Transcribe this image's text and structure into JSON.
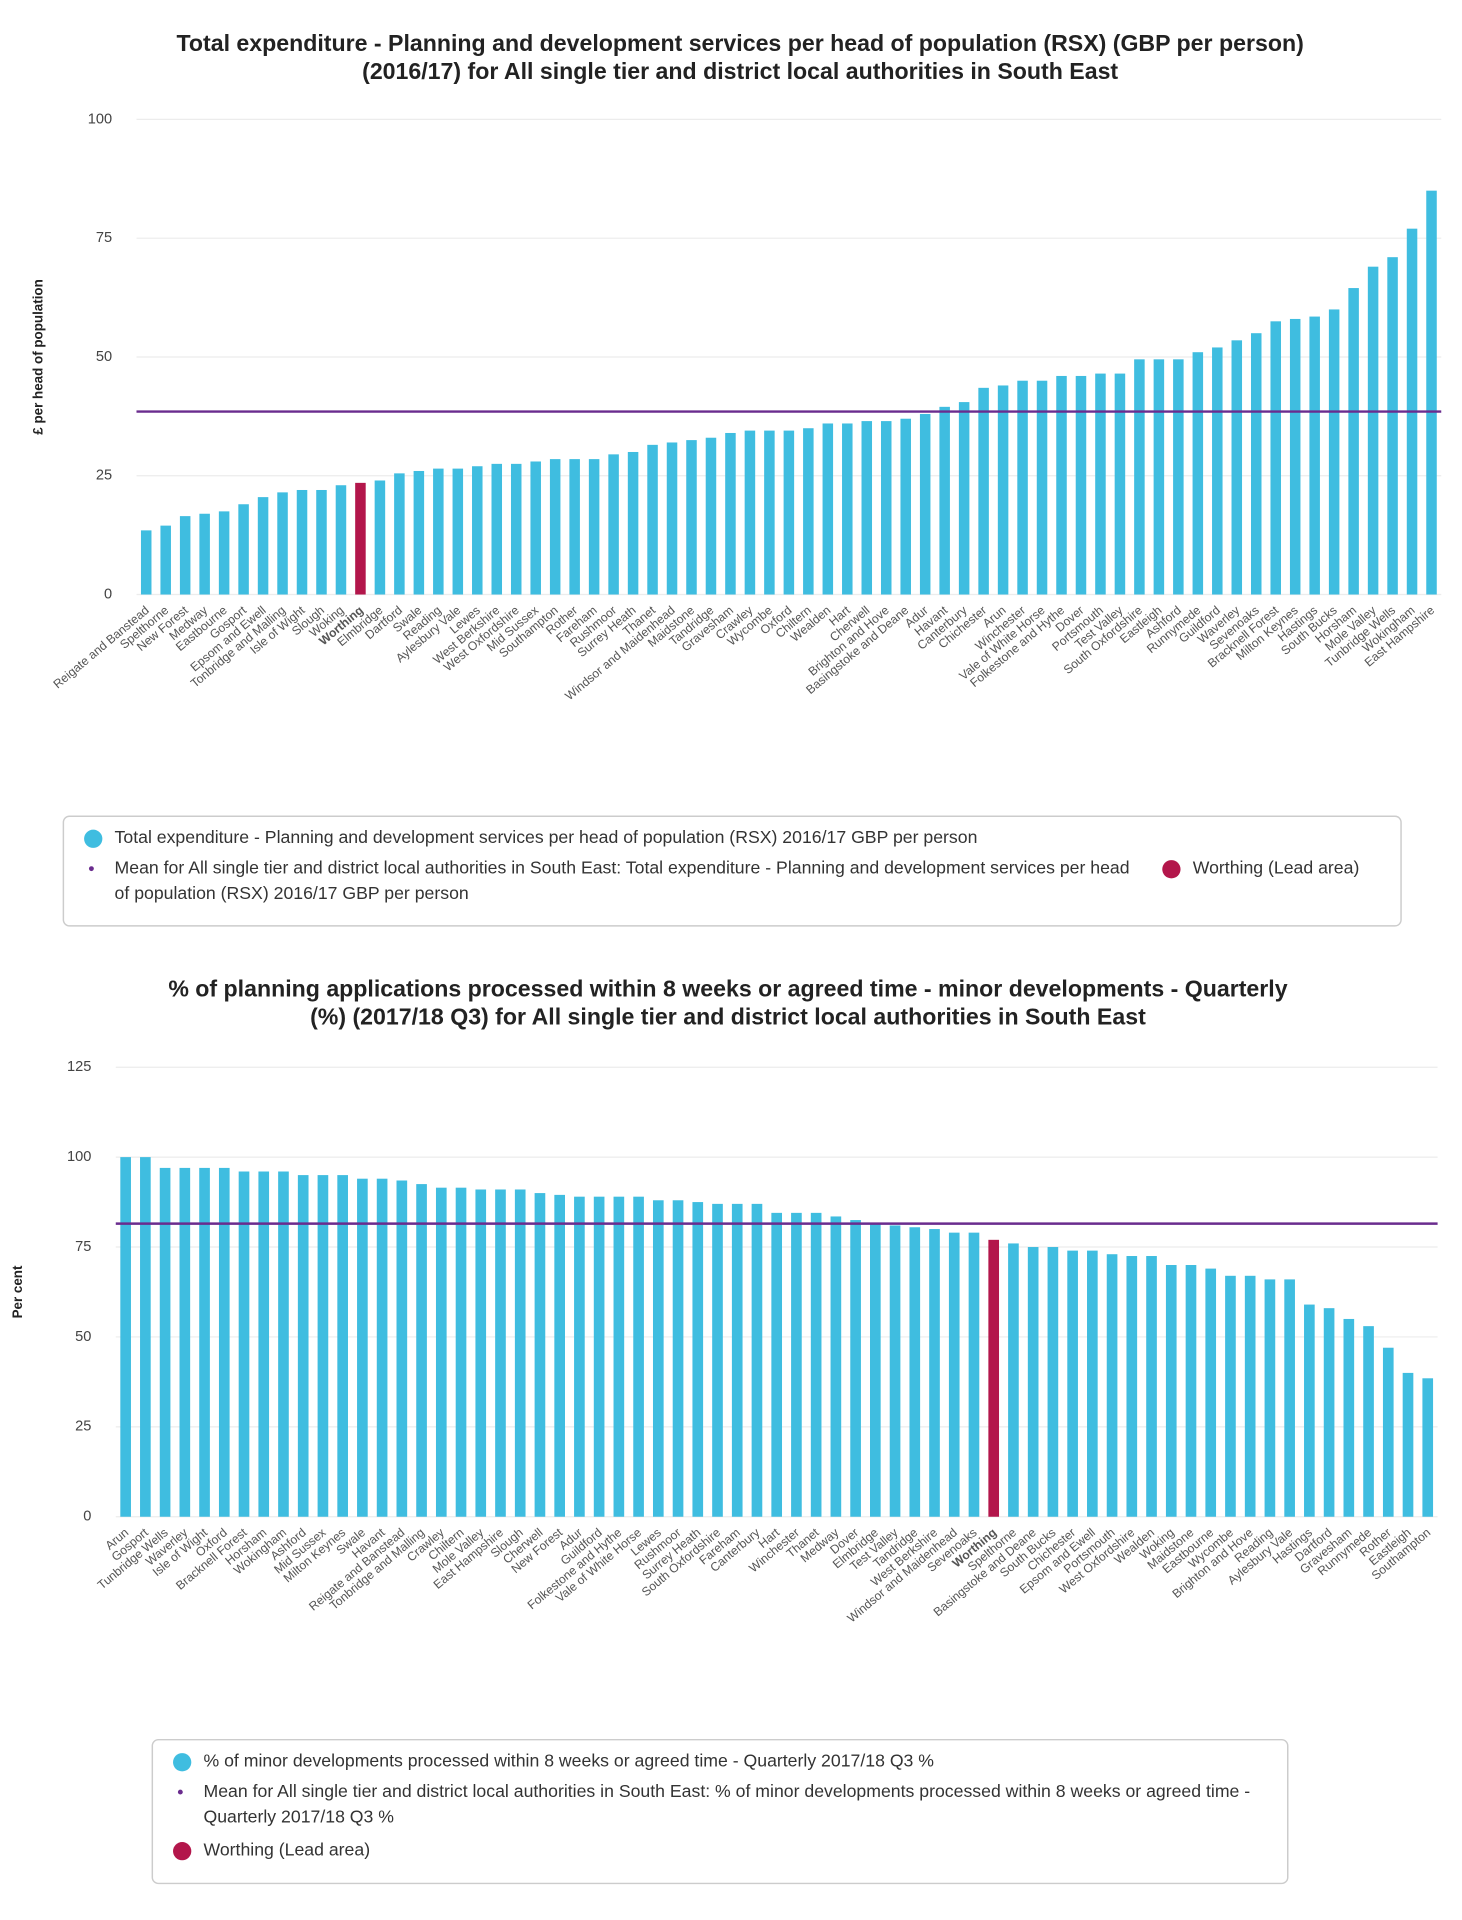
{
  "chart_data": [
    {
      "type": "bar",
      "title": [
        "Total expenditure - Planning and development services per head of population (RSX) (GBP per person)",
        "(2016/17) for All single tier and district local authorities in South East"
      ],
      "y_label": "£ per head of population",
      "ylim": [
        0,
        100
      ],
      "yticks": [
        0,
        25,
        50,
        75,
        100
      ],
      "grid": true,
      "categories": [
        "Reigate and Banstead",
        "Spelthorne",
        "New Forest",
        "Medway",
        "Eastbourne",
        "Gosport",
        "Epsom and Ewell",
        "Tonbridge and Malling",
        "Isle of Wight",
        "Slough",
        "Woking",
        "Worthing",
        "Elmbridge",
        "Dartford",
        "Swale",
        "Reading",
        "Aylesbury Vale",
        "Lewes",
        "West Berkshire",
        "West Oxfordshire",
        "Mid Sussex",
        "Southampton",
        "Rother",
        "Fareham",
        "Rushmoor",
        "Surrey Heath",
        "Thanet",
        "Windsor and Maidenhead",
        "Maidstone",
        "Tandridge",
        "Gravesham",
        "Crawley",
        "Wycombe",
        "Oxford",
        "Chiltern",
        "Wealden",
        "Hart",
        "Cherwell",
        "Brighton and Hove",
        "Basingstoke and Deane",
        "Adur",
        "Havant",
        "Canterbury",
        "Chichester",
        "Arun",
        "Winchester",
        "Vale of White Horse",
        "Folkestone and Hythe",
        "Dover",
        "Portsmouth",
        "Test Valley",
        "South Oxfordshire",
        "Eastleigh",
        "Ashford",
        "Runnymede",
        "Guildford",
        "Waverley",
        "Sevenoaks",
        "Bracknell Forest",
        "Milton Keynes",
        "Hastings",
        "South Bucks",
        "Horsham",
        "Mole Valley",
        "Tunbridge Wells",
        "Wokingham",
        "East Hampshire"
      ],
      "series": [
        {
          "name": "Total expenditure - Planning and development services per head of population (RSX) 2016/17 GBP per person",
          "color": "#3fbde0",
          "values": [
            13.5,
            14.5,
            16.5,
            17,
            17.5,
            19,
            20.5,
            21.5,
            22,
            22,
            23,
            23.5,
            24,
            25.5,
            26,
            26.5,
            26.5,
            27,
            27.5,
            27.5,
            28,
            28.5,
            28.5,
            28.5,
            29.5,
            30,
            31.5,
            32,
            32.5,
            33,
            34,
            34.5,
            34.5,
            34.5,
            35,
            36,
            36,
            36.5,
            36.5,
            37,
            38,
            39.5,
            40.5,
            43.5,
            44,
            45,
            45,
            46,
            46,
            46.5,
            46.5,
            49.5,
            49.5,
            49.5,
            51,
            52,
            53.5,
            55,
            57.5,
            58,
            58.5,
            60,
            64.5,
            69,
            71,
            77,
            85
          ]
        }
      ],
      "mean": {
        "name": "Mean for All single tier and district local authorities in South East: Total expenditure - Planning and development services per head of population (RSX) 2016/17 GBP per person",
        "value": 38.5,
        "color": "#6a2c8e"
      },
      "highlight": {
        "name": "Worthing (Lead area)",
        "category": "Worthing",
        "color": "#b3164b"
      }
    },
    {
      "type": "bar",
      "title": [
        "% of planning applications processed within 8 weeks or agreed time - minor developments - Quarterly",
        "(%) (2017/18 Q3) for All single tier and district local authorities in South East"
      ],
      "y_label": "Per cent",
      "ylim": [
        0,
        125
      ],
      "yticks": [
        0,
        25,
        50,
        75,
        100,
        125
      ],
      "grid": true,
      "categories": [
        "Arun",
        "Gosport",
        "Tunbridge Wells",
        "Waverley",
        "Isle of Wight",
        "Oxford",
        "Bracknell Forest",
        "Horsham",
        "Wokingham",
        "Ashford",
        "Mid Sussex",
        "Milton Keynes",
        "Swale",
        "Havant",
        "Reigate and Banstead",
        "Tonbridge and Malling",
        "Crawley",
        "Chiltern",
        "Mole Valley",
        "East Hampshire",
        "Slough",
        "Cherwell",
        "New Forest",
        "Adur",
        "Guildford",
        "Folkestone and Hythe",
        "Vale of White Horse",
        "Lewes",
        "Rushmoor",
        "Surrey Heath",
        "South Oxfordshire",
        "Fareham",
        "Canterbury",
        "Hart",
        "Winchester",
        "Thanet",
        "Medway",
        "Dover",
        "Elmbridge",
        "Test Valley",
        "Tandridge",
        "West Berkshire",
        "Windsor and Maidenhead",
        "Sevenoaks",
        "Worthing",
        "Spelthorne",
        "Basingstoke and Deane",
        "South Bucks",
        "Chichester",
        "Epsom and Ewell",
        "Portsmouth",
        "West Oxfordshire",
        "Wealden",
        "Woking",
        "Maidstone",
        "Eastbourne",
        "Wycombe",
        "Brighton and Hove",
        "Reading",
        "Aylesbury Vale",
        "Hastings",
        "Dartford",
        "Gravesham",
        "Runnymede",
        "Rother",
        "Eastleigh",
        "Southampton"
      ],
      "series": [
        {
          "name": "% of minor developments processed within 8 weeks or agreed time - Quarterly 2017/18 Q3 %",
          "color": "#3fbde0",
          "values": [
            100,
            100,
            97,
            97,
            97,
            97,
            96,
            96,
            96,
            95,
            95,
            95,
            94,
            94,
            93.5,
            92.5,
            91.5,
            91.5,
            91,
            91,
            91,
            90,
            89.5,
            89,
            89,
            89,
            89,
            88,
            88,
            87.5,
            87,
            87,
            87,
            84.5,
            84.5,
            84.5,
            83.5,
            82.5,
            81.5,
            81,
            80.5,
            80,
            79,
            79,
            77,
            76,
            75,
            75,
            74,
            74,
            73,
            72.5,
            72.5,
            70,
            70,
            69,
            67,
            67,
            66,
            66,
            59,
            58,
            55,
            53,
            47,
            40,
            38.5
          ]
        }
      ],
      "mean": {
        "name": "Mean for All single tier and district local authorities in South East: % of minor developments processed within 8 weeks or agreed time - Quarterly 2017/18 Q3 %",
        "value": 81.5,
        "color": "#6a2c8e"
      },
      "highlight": {
        "name": "Worthing (Lead area)",
        "category": "Worthing",
        "color": "#b3164b"
      }
    }
  ]
}
